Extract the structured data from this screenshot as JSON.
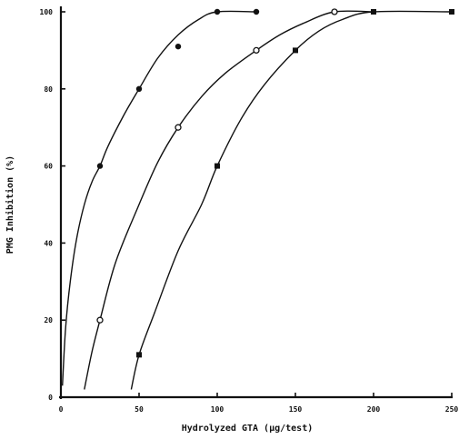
{
  "chart_data": {
    "type": "scatter",
    "xlabel": "Hydrolyzed GTA (µg/test)",
    "ylabel": "PMG Inhibition (%)",
    "xlim": [
      0,
      250
    ],
    "ylim": [
      0,
      100
    ],
    "x_ticks": [
      0,
      50,
      100,
      150,
      200,
      250
    ],
    "y_ticks": [
      0,
      20,
      40,
      60,
      80,
      100
    ],
    "x_tick_labels": [
      "0",
      "50",
      "100",
      "150",
      "200",
      "250"
    ],
    "y_tick_labels": [
      "0",
      "20",
      "40",
      "60",
      "80",
      "100"
    ],
    "grid": false,
    "legend": "none",
    "series": [
      {
        "marker": "filled-circle",
        "points": [
          [
            25,
            60
          ],
          [
            50,
            80
          ],
          [
            75,
            91
          ],
          [
            100,
            100
          ],
          [
            125,
            100
          ]
        ],
        "curve": [
          [
            1,
            3
          ],
          [
            3,
            18
          ],
          [
            6,
            30
          ],
          [
            10,
            41
          ],
          [
            15,
            50
          ],
          [
            20,
            56
          ],
          [
            25,
            60
          ],
          [
            30,
            65
          ],
          [
            40,
            73
          ],
          [
            50,
            80
          ],
          [
            62,
            88
          ],
          [
            75,
            94
          ],
          [
            88,
            98
          ],
          [
            100,
            100
          ],
          [
            125,
            100
          ]
        ]
      },
      {
        "marker": "open-circle",
        "points": [
          [
            25,
            20
          ],
          [
            75,
            70
          ],
          [
            125,
            90
          ],
          [
            175,
            100
          ]
        ],
        "curve": [
          [
            15,
            2
          ],
          [
            20,
            12
          ],
          [
            25,
            20
          ],
          [
            35,
            35
          ],
          [
            50,
            50
          ],
          [
            62,
            61
          ],
          [
            75,
            70
          ],
          [
            90,
            78
          ],
          [
            105,
            84
          ],
          [
            125,
            90
          ],
          [
            140,
            94
          ],
          [
            155,
            97
          ],
          [
            175,
            100
          ],
          [
            200,
            100
          ]
        ]
      },
      {
        "marker": "filled-square",
        "points": [
          [
            50,
            11
          ],
          [
            100,
            60
          ],
          [
            150,
            90
          ],
          [
            200,
            100
          ],
          [
            250,
            100
          ]
        ],
        "curve": [
          [
            45,
            2
          ],
          [
            50,
            11
          ],
          [
            60,
            22
          ],
          [
            75,
            38
          ],
          [
            90,
            50
          ],
          [
            100,
            60
          ],
          [
            115,
            72
          ],
          [
            130,
            81
          ],
          [
            150,
            90
          ],
          [
            165,
            95
          ],
          [
            180,
            98
          ],
          [
            200,
            100
          ],
          [
            250,
            100
          ]
        ]
      }
    ]
  }
}
